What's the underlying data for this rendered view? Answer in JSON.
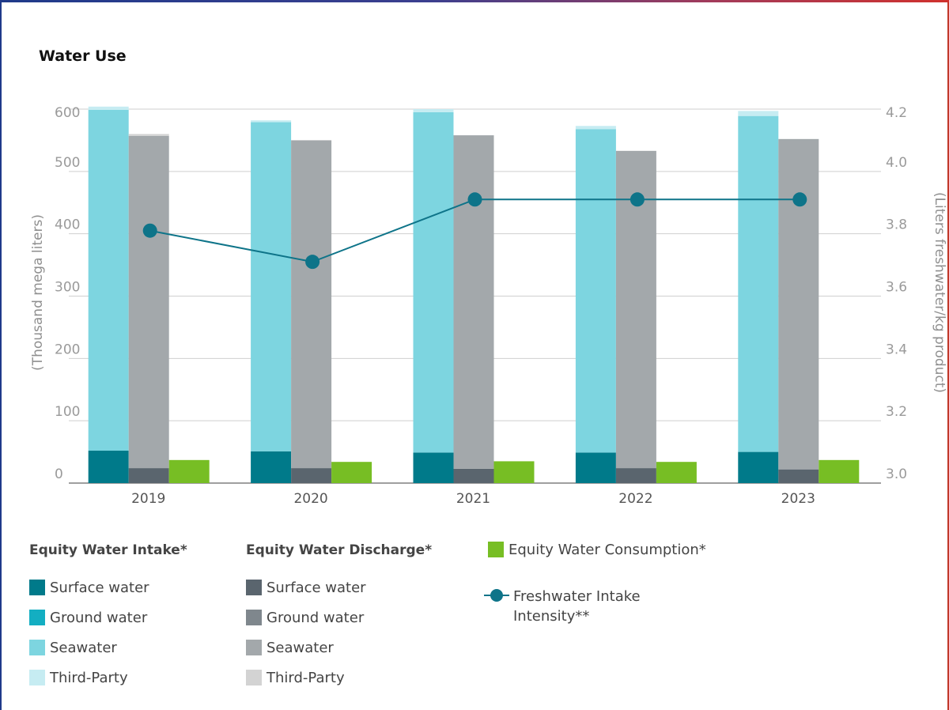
{
  "chart_data": {
    "type": "bar",
    "title": "Water Use",
    "categories": [
      "2019",
      "2020",
      "2021",
      "2022",
      "2023"
    ],
    "ylabel": "(Thousand mega liters)",
    "ylabel_right": "(Liters freshwater/kg product)",
    "ylim": [
      0,
      600
    ],
    "ylim_right": [
      3.0,
      4.2
    ],
    "yticks": [
      "0",
      "100",
      "200",
      "300",
      "400",
      "500",
      "600"
    ],
    "yticks_right": [
      "3.0",
      "3.2",
      "3.4",
      "3.6",
      "3.8",
      "4.0",
      "4.2"
    ],
    "grid": true,
    "groups": [
      {
        "name": "Equity Water Intake*",
        "series": [
          {
            "name": "Surface water",
            "color": "#007a8a",
            "values": [
              52,
              51,
              49,
              49,
              50
            ]
          },
          {
            "name": "Ground water",
            "color": "#13aec2",
            "values": [
              0,
              0,
              0,
              0,
              0
            ]
          },
          {
            "name": "Seawater",
            "color": "#7dd5e0",
            "values": [
              547,
              528,
              546,
              519,
              539
            ]
          },
          {
            "name": "Third-Party",
            "color": "#c6ecf2",
            "values": [
              5,
              3,
              5,
              5,
              8
            ]
          }
        ]
      },
      {
        "name": "Equity Water Discharge*",
        "series": [
          {
            "name": "Surface water",
            "color": "#5a656e",
            "values": [
              24,
              24,
              23,
              24,
              22
            ]
          },
          {
            "name": "Ground water",
            "color": "#7f878d",
            "values": [
              0,
              0,
              0,
              0,
              0
            ]
          },
          {
            "name": "Seawater",
            "color": "#a3a8ab",
            "values": [
              533,
              526,
              535,
              509,
              530
            ]
          },
          {
            "name": "Third-Party",
            "color": "#d3d3d3",
            "values": [
              3,
              0,
              0,
              0,
              0
            ]
          }
        ]
      },
      {
        "name": "Equity Water Consumption*",
        "color": "#77be24",
        "values": [
          37,
          34,
          35,
          34,
          37
        ]
      }
    ],
    "line": {
      "name": "Freshwater Intake Intensity**",
      "color": "#0e7489",
      "values": [
        3.81,
        3.71,
        3.91,
        3.91,
        3.91
      ]
    }
  }
}
